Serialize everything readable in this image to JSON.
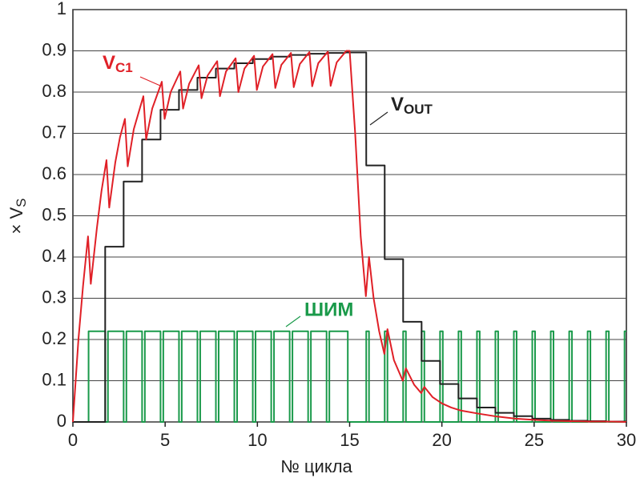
{
  "chart_data": {
    "type": "line",
    "xlabel": "№ цикла",
    "ylabel": "× V",
    "ylabel_subscript": "S",
    "xlim": [
      0,
      30
    ],
    "xticks": [
      0,
      5,
      10,
      15,
      20,
      25,
      30
    ],
    "ylim": [
      0,
      1
    ],
    "yticks": [
      0,
      0.1,
      0.2,
      0.3,
      0.4,
      0.5,
      0.6,
      0.7,
      0.8,
      0.9,
      1
    ],
    "grid": "y",
    "series": [
      {
        "name": "V",
        "subscript": "C1",
        "color": "#e02027",
        "step": false,
        "x": [
          0,
          0.3,
          0.55,
          0.82,
          0.97,
          1.3,
          1.55,
          1.82,
          1.97,
          2.3,
          2.55,
          2.82,
          2.97,
          3.3,
          3.82,
          3.97,
          4.3,
          4.82,
          4.97,
          5.3,
          5.82,
          5.97,
          6.3,
          6.82,
          6.97,
          7.3,
          7.82,
          7.97,
          8.3,
          8.82,
          8.97,
          9.3,
          9.82,
          9.97,
          10.3,
          10.82,
          10.97,
          11.3,
          11.82,
          11.97,
          12.3,
          12.82,
          12.97,
          13.3,
          13.82,
          13.97,
          14.3,
          14.82,
          15.0,
          15.3,
          15.6,
          15.88,
          16.05,
          16.3,
          16.6,
          16.88,
          17.05,
          17.4,
          17.88,
          18.05,
          18.5,
          18.88,
          19.05,
          19.5,
          20,
          20.5,
          21,
          22,
          23,
          24,
          25,
          26,
          27,
          28,
          29,
          30
        ],
        "values": [
          0,
          0.2,
          0.33,
          0.45,
          0.335,
          0.47,
          0.56,
          0.635,
          0.52,
          0.63,
          0.69,
          0.735,
          0.62,
          0.71,
          0.79,
          0.685,
          0.76,
          0.825,
          0.735,
          0.8,
          0.85,
          0.76,
          0.82,
          0.865,
          0.785,
          0.84,
          0.875,
          0.79,
          0.85,
          0.882,
          0.8,
          0.857,
          0.888,
          0.805,
          0.862,
          0.892,
          0.81,
          0.866,
          0.895,
          0.812,
          0.868,
          0.897,
          0.814,
          0.87,
          0.898,
          0.815,
          0.872,
          0.9,
          0.9,
          0.7,
          0.45,
          0.305,
          0.4,
          0.3,
          0.22,
          0.165,
          0.225,
          0.15,
          0.1,
          0.13,
          0.09,
          0.07,
          0.085,
          0.06,
          0.045,
          0.035,
          0.028,
          0.02,
          0.013,
          0.008,
          0.005,
          0.003,
          0.002,
          0.001,
          0.001,
          0
        ]
      },
      {
        "name": "V",
        "subscript": "OUT",
        "color": "#222222",
        "step": true,
        "x": [
          0,
          1.75,
          2.75,
          3.75,
          4.75,
          5.75,
          6.75,
          7.75,
          8.75,
          9.75,
          10.75,
          11.75,
          12.75,
          13.75,
          14.75,
          15.9,
          16.9,
          17.9,
          18.9,
          19.9,
          20.9,
          21.9,
          22.9,
          23.9,
          24.9,
          25.9,
          26.9,
          27.9,
          28.9
        ],
        "values": [
          0,
          0.425,
          0.583,
          0.685,
          0.757,
          0.805,
          0.835,
          0.857,
          0.87,
          0.88,
          0.886,
          0.89,
          0.893,
          0.895,
          0.896,
          0.622,
          0.395,
          0.243,
          0.148,
          0.092,
          0.057,
          0.035,
          0.022,
          0.014,
          0.008,
          0.005,
          0.003,
          0.002,
          0.001
        ]
      },
      {
        "name": "ШИМ",
        "color": "#1a9a4a",
        "step": true,
        "x": [
          0,
          0.85,
          1.75,
          1.9,
          2.75,
          2.9,
          3.75,
          3.9,
          4.75,
          4.9,
          5.75,
          5.9,
          6.75,
          6.9,
          7.75,
          7.9,
          8.75,
          8.9,
          9.75,
          9.9,
          10.75,
          10.9,
          11.75,
          11.9,
          12.75,
          12.9,
          13.75,
          13.9,
          14.9,
          15.9,
          16.05,
          16.9,
          17.05,
          17.9,
          18.05,
          18.9,
          19.05,
          19.9,
          20.05,
          20.9,
          21.05,
          21.9,
          22.05,
          22.9,
          23.05,
          23.9,
          24.05,
          24.9,
          25.05,
          25.9,
          26.05,
          26.9,
          27.05,
          27.9,
          28.05,
          28.9,
          29.05,
          29.9
        ],
        "values": [
          0,
          0.22,
          0,
          0.22,
          0,
          0.22,
          0,
          0.22,
          0,
          0.22,
          0,
          0.22,
          0,
          0.22,
          0,
          0.22,
          0,
          0.22,
          0,
          0.22,
          0,
          0.22,
          0,
          0.22,
          0,
          0.22,
          0,
          0.22,
          0,
          0.22,
          0,
          0.22,
          0,
          0.22,
          0,
          0.22,
          0,
          0.22,
          0,
          0.22,
          0,
          0.22,
          0,
          0.22,
          0,
          0.22,
          0,
          0.22,
          0,
          0.22,
          0,
          0.22,
          0,
          0.22,
          0,
          0.22,
          0,
          0.22
        ]
      }
    ]
  }
}
